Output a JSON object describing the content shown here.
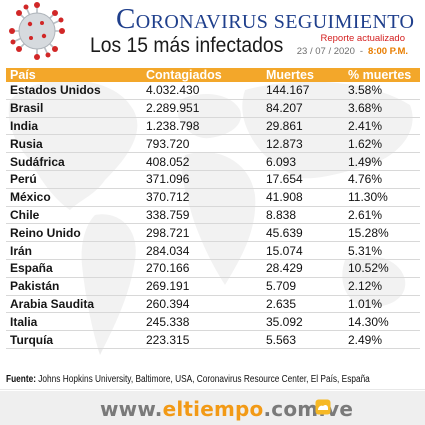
{
  "header": {
    "title_first_letter": "C",
    "title_rest": "ORONAVIRUS SEGUIMIENTO",
    "subtitle": "Los 15 más infectados",
    "report_label": "Reporte actualizado",
    "report_date": "23 / 07 / 2020",
    "report_date_sep": "-",
    "report_time": "8:00",
    "report_time_suffix": " P.M."
  },
  "table": {
    "headers": {
      "country": "País",
      "confirmed": "Contagiados",
      "deaths": "Muertes",
      "death_pct": "% muertes"
    },
    "rows": [
      {
        "country": "Estados Unidos",
        "confirmed": "4.032.430",
        "deaths": "144.167",
        "death_pct": "3.58%"
      },
      {
        "country": "Brasil",
        "confirmed": "2.289.951",
        "deaths": "84.207",
        "death_pct": "3.68%"
      },
      {
        "country": "India",
        "confirmed": "1.238.798",
        "deaths": "29.861",
        "death_pct": "2.41%"
      },
      {
        "country": "Rusia",
        "confirmed": "793.720",
        "deaths": "12.873",
        "death_pct": "1.62%"
      },
      {
        "country": "Sudáfrica",
        "confirmed": "408.052",
        "deaths": "6.093",
        "death_pct": "1.49%"
      },
      {
        "country": "Perú",
        "confirmed": "371.096",
        "deaths": "17.654",
        "death_pct": "4.76%"
      },
      {
        "country": "México",
        "confirmed": "370.712",
        "deaths": "41.908",
        "death_pct": "11.30%"
      },
      {
        "country": "Chile",
        "confirmed": "338.759",
        "deaths": "8.838",
        "death_pct": "2.61%"
      },
      {
        "country": "Reino Unido",
        "confirmed": "298.721",
        "deaths": "45.639",
        "death_pct": "15.28%"
      },
      {
        "country": "Irán",
        "confirmed": "284.034",
        "deaths": "15.074",
        "death_pct": "5.31%"
      },
      {
        "country": "España",
        "confirmed": "270.166",
        "deaths": "28.429",
        "death_pct": "10.52%"
      },
      {
        "country": "Pakistán",
        "confirmed": "269.191",
        "deaths": "5.709",
        "death_pct": "2.12%"
      },
      {
        "country": "Arabia Saudita",
        "confirmed": "260.394",
        "deaths": "2.635",
        "death_pct": "1.01%"
      },
      {
        "country": "Italia",
        "confirmed": "245.338",
        "deaths": "35.092",
        "death_pct": "14.30%"
      },
      {
        "country": "Turquía",
        "confirmed": "223.315",
        "deaths": "5.563",
        "death_pct": "2.49%"
      }
    ]
  },
  "source": {
    "label": "Fuente:",
    "text": " Johns Hopkins University, Baltimore, USA, Coronavirus Resource Center, El País, España"
  },
  "footer": {
    "site_prefix": "www.",
    "site_brand": "eltiempo",
    "site_suffix": ".com.ve"
  },
  "icons": {
    "virus": "coronavirus-icon",
    "world_map": "world-map-background",
    "brand_logo": "eltiempo-logo"
  },
  "colors": {
    "title_blue": "#1f3f8c",
    "header_orange": "#f3a72a",
    "report_red": "#d42020",
    "time_orange": "#e87d00",
    "site_gray": "#7a7a7a",
    "site_orange": "#f29a16"
  }
}
